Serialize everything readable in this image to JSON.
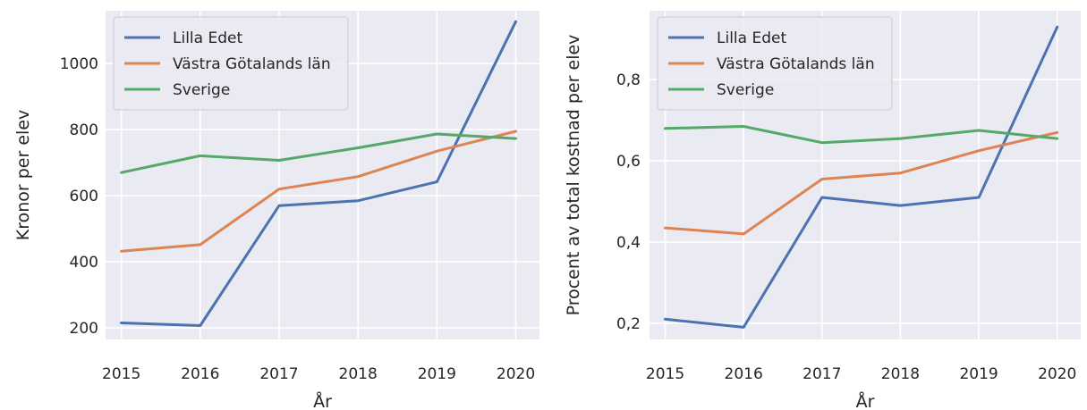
{
  "chart_data": [
    {
      "type": "line",
      "title": "",
      "xlabel": "År",
      "ylabel": "Kronor per elev",
      "x": [
        2015,
        2016,
        2017,
        2018,
        2019,
        2020
      ],
      "xticks": [
        "2015",
        "2016",
        "2017",
        "2018",
        "2019",
        "2020"
      ],
      "yticks": [
        200,
        400,
        600,
        800,
        1000
      ],
      "ytick_labels": [
        "200",
        "400",
        "600",
        "800",
        "1000"
      ],
      "xlim": [
        2014.8,
        2020.3
      ],
      "ylim": [
        165,
        1160
      ],
      "grid": true,
      "legend_position": "upper-left",
      "series": [
        {
          "name": "Lilla Edet",
          "color": "#4c72b0",
          "values": [
            215,
            207,
            570,
            585,
            642,
            1127
          ]
        },
        {
          "name": "Västra Götalands län",
          "color": "#dd8452",
          "values": [
            432,
            452,
            620,
            658,
            735,
            795
          ]
        },
        {
          "name": "Sverige",
          "color": "#55a868",
          "values": [
            670,
            721,
            707,
            745,
            787,
            773
          ]
        }
      ]
    },
    {
      "type": "line",
      "title": "",
      "xlabel": "År",
      "ylabel": "Procent av total kostnad per elev",
      "x": [
        2015,
        2016,
        2017,
        2018,
        2019,
        2020
      ],
      "xticks": [
        "2015",
        "2016",
        "2017",
        "2018",
        "2019",
        "2020"
      ],
      "yticks": [
        0.2,
        0.4,
        0.6,
        0.8
      ],
      "ytick_labels": [
        "0,2",
        "0,4",
        "0,6",
        "0,8"
      ],
      "xlim": [
        2014.8,
        2020.3
      ],
      "ylim": [
        0.16,
        0.97
      ],
      "grid": true,
      "legend_position": "upper-left",
      "series": [
        {
          "name": "Lilla Edet",
          "color": "#4c72b0",
          "values": [
            0.21,
            0.19,
            0.51,
            0.49,
            0.51,
            0.93
          ]
        },
        {
          "name": "Västra Götalands län",
          "color": "#dd8452",
          "values": [
            0.435,
            0.42,
            0.555,
            0.57,
            0.625,
            0.67
          ]
        },
        {
          "name": "Sverige",
          "color": "#55a868",
          "values": [
            0.68,
            0.685,
            0.645,
            0.655,
            0.675,
            0.655
          ]
        }
      ]
    }
  ]
}
